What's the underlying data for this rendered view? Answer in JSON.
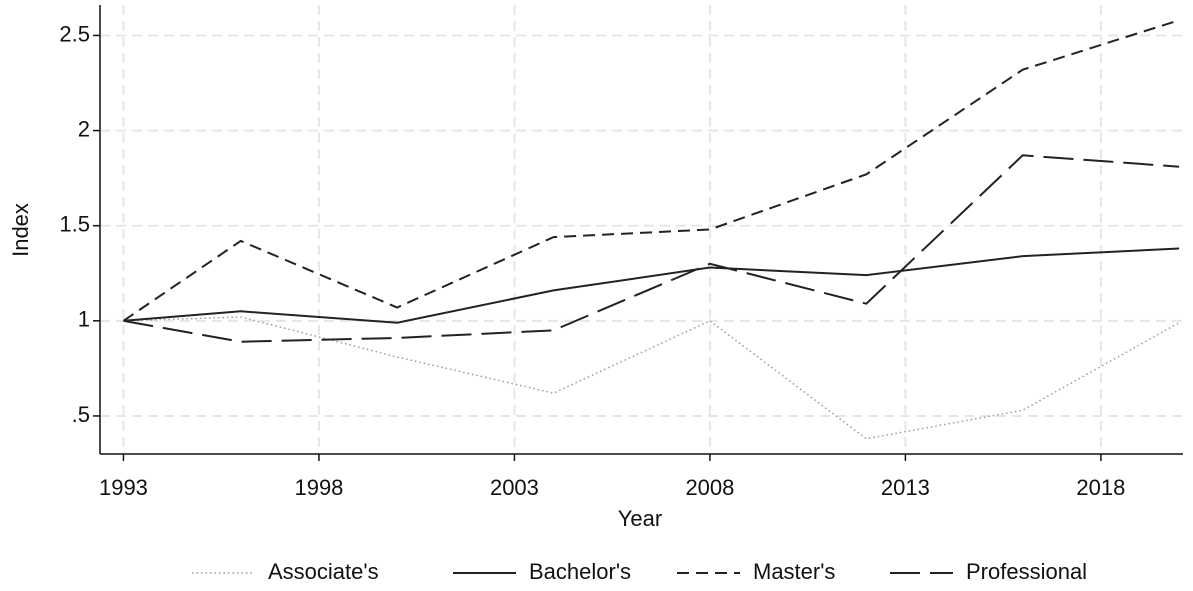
{
  "chart_data": {
    "type": "line",
    "x_label": "Year",
    "y_label": "Index",
    "x": [
      1993,
      1996,
      2000,
      2004,
      2008,
      2012,
      2016,
      2020
    ],
    "series": [
      {
        "name": "Associate's",
        "color": "#9a9a9a",
        "style": "dotted",
        "values": [
          1.0,
          1.02,
          0.81,
          0.62,
          1.0,
          0.38,
          0.53,
          0.99
        ]
      },
      {
        "name": "Bachelor's",
        "color": "#222222",
        "style": "solid",
        "values": [
          1.0,
          1.05,
          0.99,
          1.16,
          1.28,
          1.24,
          1.34,
          1.38
        ]
      },
      {
        "name": "Master's",
        "color": "#222222",
        "style": "dashed",
        "values": [
          1.0,
          1.42,
          1.07,
          1.44,
          1.48,
          1.77,
          2.32,
          2.58
        ]
      },
      {
        "name": "Professional",
        "color": "#222222",
        "style": "longdash",
        "values": [
          1.0,
          0.89,
          0.91,
          0.95,
          1.3,
          1.09,
          1.87,
          1.81
        ]
      }
    ],
    "xlim": [
      1992.4,
      2020.1
    ],
    "ylim": [
      0.3,
      2.66
    ],
    "xticks": [
      1993,
      1998,
      2003,
      2008,
      2013,
      2018
    ],
    "yticks": [
      {
        "value": 0.5,
        "label": ".5"
      },
      1,
      1.5,
      2,
      2.5
    ],
    "grid": true,
    "legend": "bottom"
  }
}
